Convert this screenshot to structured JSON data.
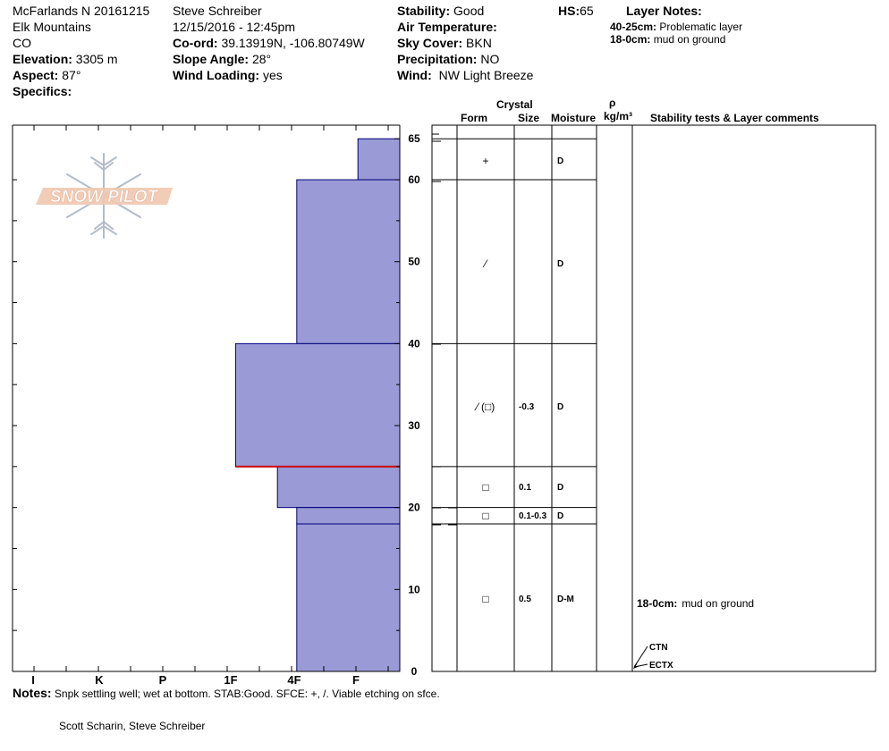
{
  "header": {
    "col1": {
      "location": "McFarlands N 20161215",
      "range": "Elk Mountains",
      "state": "CO",
      "elevation_label": "Elevation:",
      "elevation": "3305 m",
      "aspect_label": "Aspect:",
      "aspect": "87°",
      "specifics_label": "Specifics:"
    },
    "col2": {
      "observer": "Steve Schreiber",
      "datetime": "12/15/2016 - 12:45pm",
      "coord_label": "Co-ord:",
      "coord": "39.13919N, -106.80749W",
      "slope_label": "Slope Angle:",
      "slope": "28°",
      "wind_loading_label": "Wind Loading:",
      "wind_loading": "yes"
    },
    "col3": {
      "stability_label": "Stability:",
      "stability": "Good",
      "air_temp_label": "Air Temperature:",
      "sky_label": "Sky Cover:",
      "sky": "BKN",
      "precip_label": "Precipitation:",
      "precip": "NO",
      "wind_label": "Wind:",
      "wind": "NW Light Breeze",
      "hs_label": "HS:",
      "hs": "65"
    },
    "layer_notes": {
      "title": "Layer Notes:",
      "items": [
        {
          "range": "40-25cm:",
          "text": "Problematic layer"
        },
        {
          "range": "18-0cm:",
          "text": "mud on ground"
        }
      ]
    }
  },
  "logo_text": "SNOW PILOT",
  "colors": {
    "bar_fill": "#9a9ad6",
    "bar_stroke": "#00007a",
    "weak_layer": "#cc0000"
  },
  "table_headers": {
    "crystal": "Crystal",
    "form": "Form",
    "size": "Size",
    "moisture": "Moisture",
    "rho": "ρ",
    "density_unit": "kg/m³",
    "comments": "Stability tests & Layer comments"
  },
  "chart_data": {
    "type": "bar",
    "orientation": "horizontal",
    "x_ticks": [
      "I",
      "K",
      "P",
      "1F",
      "4F",
      "F"
    ],
    "y_ticks": [
      0,
      10,
      20,
      30,
      40,
      50,
      60,
      65
    ],
    "ylim": [
      0,
      65
    ],
    "x_scale_note": "hardness index F=1, 4F=2, 1F=3, P=4, K=5, I=6",
    "layers": [
      {
        "top": 65,
        "bottom": 60,
        "hardness_value": 0.65
      },
      {
        "top": 60,
        "bottom": 40,
        "hardness_value": 1.6
      },
      {
        "top": 40,
        "bottom": 25,
        "hardness_value": 2.55
      },
      {
        "top": 25,
        "bottom": 20,
        "hardness_value": 1.9
      },
      {
        "top": 20,
        "bottom": 18,
        "hardness_value": 1.6
      },
      {
        "top": 18,
        "bottom": 0,
        "hardness_value": 1.6
      }
    ],
    "weak_layer_depth": 25
  },
  "layer_table": [
    {
      "top": 65,
      "bottom": 60,
      "form": "+",
      "form_icon": "plus-icon",
      "size": "",
      "moisture": "D"
    },
    {
      "top": 60,
      "bottom": 40,
      "form": "⁄",
      "form_icon": "slash-icon",
      "size": "",
      "moisture": "D"
    },
    {
      "top": 40,
      "bottom": 25,
      "form": "⁄ (□)",
      "form_icon": "slash-square-icon",
      "size": "-0.3",
      "moisture": "D"
    },
    {
      "top": 25,
      "bottom": 20,
      "form": "□",
      "form_icon": "square-icon",
      "size": "0.1",
      "moisture": "D"
    },
    {
      "top": 20,
      "bottom": 18,
      "form": "□",
      "form_icon": "square-icon",
      "size": "0.1-0.3",
      "moisture": "D"
    },
    {
      "top": 18,
      "bottom": 0,
      "form": "□",
      "form_icon": "square-icon",
      "size": "0.5",
      "moisture": "D-M"
    }
  ],
  "comments": [
    {
      "depth": 9,
      "label": "18-0cm:",
      "text": "mud on ground"
    }
  ],
  "tests": [
    {
      "label": "CTN",
      "depth": 2.2
    },
    {
      "label": "ECTX",
      "depth": 0.5
    }
  ],
  "notes_label": "Notes:",
  "notes": "Snpk settling well; wet at bottom. STAB:Good. SFCE: +, /. Viable etching on sfce.",
  "observers": "Scott Scharin, Steve Schreiber"
}
